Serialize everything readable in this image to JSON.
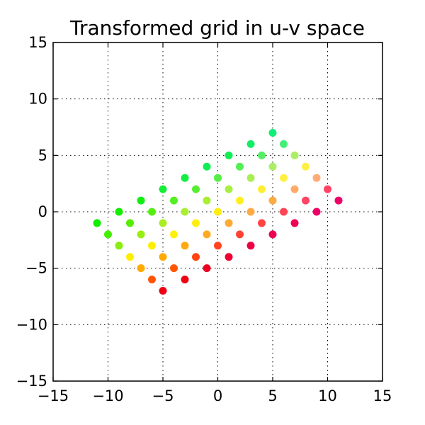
{
  "chart_data": {
    "type": "scatter",
    "title": "Transformed grid in u-v space",
    "xlabel": "",
    "ylabel": "",
    "xlim": [
      -15,
      15
    ],
    "ylim": [
      -15,
      15
    ],
    "xticks": [
      -15,
      -10,
      -5,
      0,
      5,
      10,
      15
    ],
    "yticks": [
      -15,
      -10,
      -5,
      0,
      5,
      10,
      15
    ],
    "xtick_labels": [
      "−15",
      "−10",
      "−5",
      "0",
      "5",
      "10",
      "15"
    ],
    "ytick_labels": [
      "−15",
      "−10",
      "−5",
      "0",
      "5",
      "10",
      "15"
    ],
    "grid": true,
    "points": [
      {
        "x": -11,
        "y": -1,
        "color": "#11ee00"
      },
      {
        "x": -10,
        "y": -2,
        "color": "#44ee00"
      },
      {
        "x": -9,
        "y": -3,
        "color": "#88ee11"
      },
      {
        "x": -8,
        "y": -4,
        "color": "#ffee00"
      },
      {
        "x": -7,
        "y": -5,
        "color": "#ffaa00"
      },
      {
        "x": -6,
        "y": -6,
        "color": "#ff5500"
      },
      {
        "x": -5,
        "y": -7,
        "color": "#ee0011"
      },
      {
        "x": -9,
        "y": 0,
        "color": "#11ee00"
      },
      {
        "x": -8,
        "y": -1,
        "color": "#55ee00"
      },
      {
        "x": -7,
        "y": -2,
        "color": "#99ee11"
      },
      {
        "x": -6,
        "y": -3,
        "color": "#ffee00"
      },
      {
        "x": -5,
        "y": -4,
        "color": "#ffaa00"
      },
      {
        "x": -4,
        "y": -5,
        "color": "#ff5500"
      },
      {
        "x": -3,
        "y": -6,
        "color": "#ee0011"
      },
      {
        "x": -7,
        "y": 1,
        "color": "#11ee11"
      },
      {
        "x": -6,
        "y": 0,
        "color": "#55ee11"
      },
      {
        "x": -5,
        "y": -1,
        "color": "#aaee22"
      },
      {
        "x": -4,
        "y": -2,
        "color": "#ffee11"
      },
      {
        "x": -3,
        "y": -3,
        "color": "#ffaa11"
      },
      {
        "x": -2,
        "y": -4,
        "color": "#ff4411"
      },
      {
        "x": -1,
        "y": -5,
        "color": "#ee0022"
      },
      {
        "x": -5,
        "y": 2,
        "color": "#11ee33"
      },
      {
        "x": -4,
        "y": 1,
        "color": "#55ee22"
      },
      {
        "x": -3,
        "y": 0,
        "color": "#aaee33"
      },
      {
        "x": -2,
        "y": -1,
        "color": "#ffee11"
      },
      {
        "x": -1,
        "y": -2,
        "color": "#ffaa22"
      },
      {
        "x": 0,
        "y": -3,
        "color": "#ff4422"
      },
      {
        "x": 1,
        "y": -4,
        "color": "#ee0033"
      },
      {
        "x": -3,
        "y": 3,
        "color": "#11ee44"
      },
      {
        "x": -2,
        "y": 2,
        "color": "#55ee33"
      },
      {
        "x": -1,
        "y": 1,
        "color": "#aaee33"
      },
      {
        "x": 0,
        "y": 0,
        "color": "#ffee11"
      },
      {
        "x": 1,
        "y": -1,
        "color": "#ffaa33"
      },
      {
        "x": 2,
        "y": -2,
        "color": "#ff4433"
      },
      {
        "x": 3,
        "y": -3,
        "color": "#ee0044"
      },
      {
        "x": -1,
        "y": 4,
        "color": "#11ee55"
      },
      {
        "x": 0,
        "y": 3,
        "color": "#55ee44"
      },
      {
        "x": 1,
        "y": 2,
        "color": "#aaee44"
      },
      {
        "x": 2,
        "y": 1,
        "color": "#ffee22"
      },
      {
        "x": 3,
        "y": 0,
        "color": "#ffaa44"
      },
      {
        "x": 4,
        "y": -1,
        "color": "#ff4444"
      },
      {
        "x": 5,
        "y": -2,
        "color": "#ee0055"
      },
      {
        "x": 1,
        "y": 5,
        "color": "#11ee55"
      },
      {
        "x": 2,
        "y": 4,
        "color": "#55ee55"
      },
      {
        "x": 3,
        "y": 3,
        "color": "#aaee55"
      },
      {
        "x": 4,
        "y": 2,
        "color": "#ffee33"
      },
      {
        "x": 5,
        "y": 1,
        "color": "#ffaa44"
      },
      {
        "x": 6,
        "y": 0,
        "color": "#ff4455"
      },
      {
        "x": 7,
        "y": -1,
        "color": "#ee0055"
      },
      {
        "x": 3,
        "y": 6,
        "color": "#11ee66"
      },
      {
        "x": 4,
        "y": 5,
        "color": "#55ee66"
      },
      {
        "x": 5,
        "y": 4,
        "color": "#aaee66"
      },
      {
        "x": 6,
        "y": 3,
        "color": "#ffee44"
      },
      {
        "x": 7,
        "y": 2,
        "color": "#ffaa66"
      },
      {
        "x": 8,
        "y": 1,
        "color": "#ff4466"
      },
      {
        "x": 9,
        "y": 0,
        "color": "#ee0066"
      },
      {
        "x": 5,
        "y": 7,
        "color": "#11ee77"
      },
      {
        "x": 6,
        "y": 6,
        "color": "#44ee77"
      },
      {
        "x": 7,
        "y": 5,
        "color": "#aaee66"
      },
      {
        "x": 8,
        "y": 4,
        "color": "#ffee44"
      },
      {
        "x": 9,
        "y": 3,
        "color": "#ffaa77"
      },
      {
        "x": 10,
        "y": 2,
        "color": "#ff4466"
      },
      {
        "x": 11,
        "y": 1,
        "color": "#ee0066"
      }
    ]
  }
}
